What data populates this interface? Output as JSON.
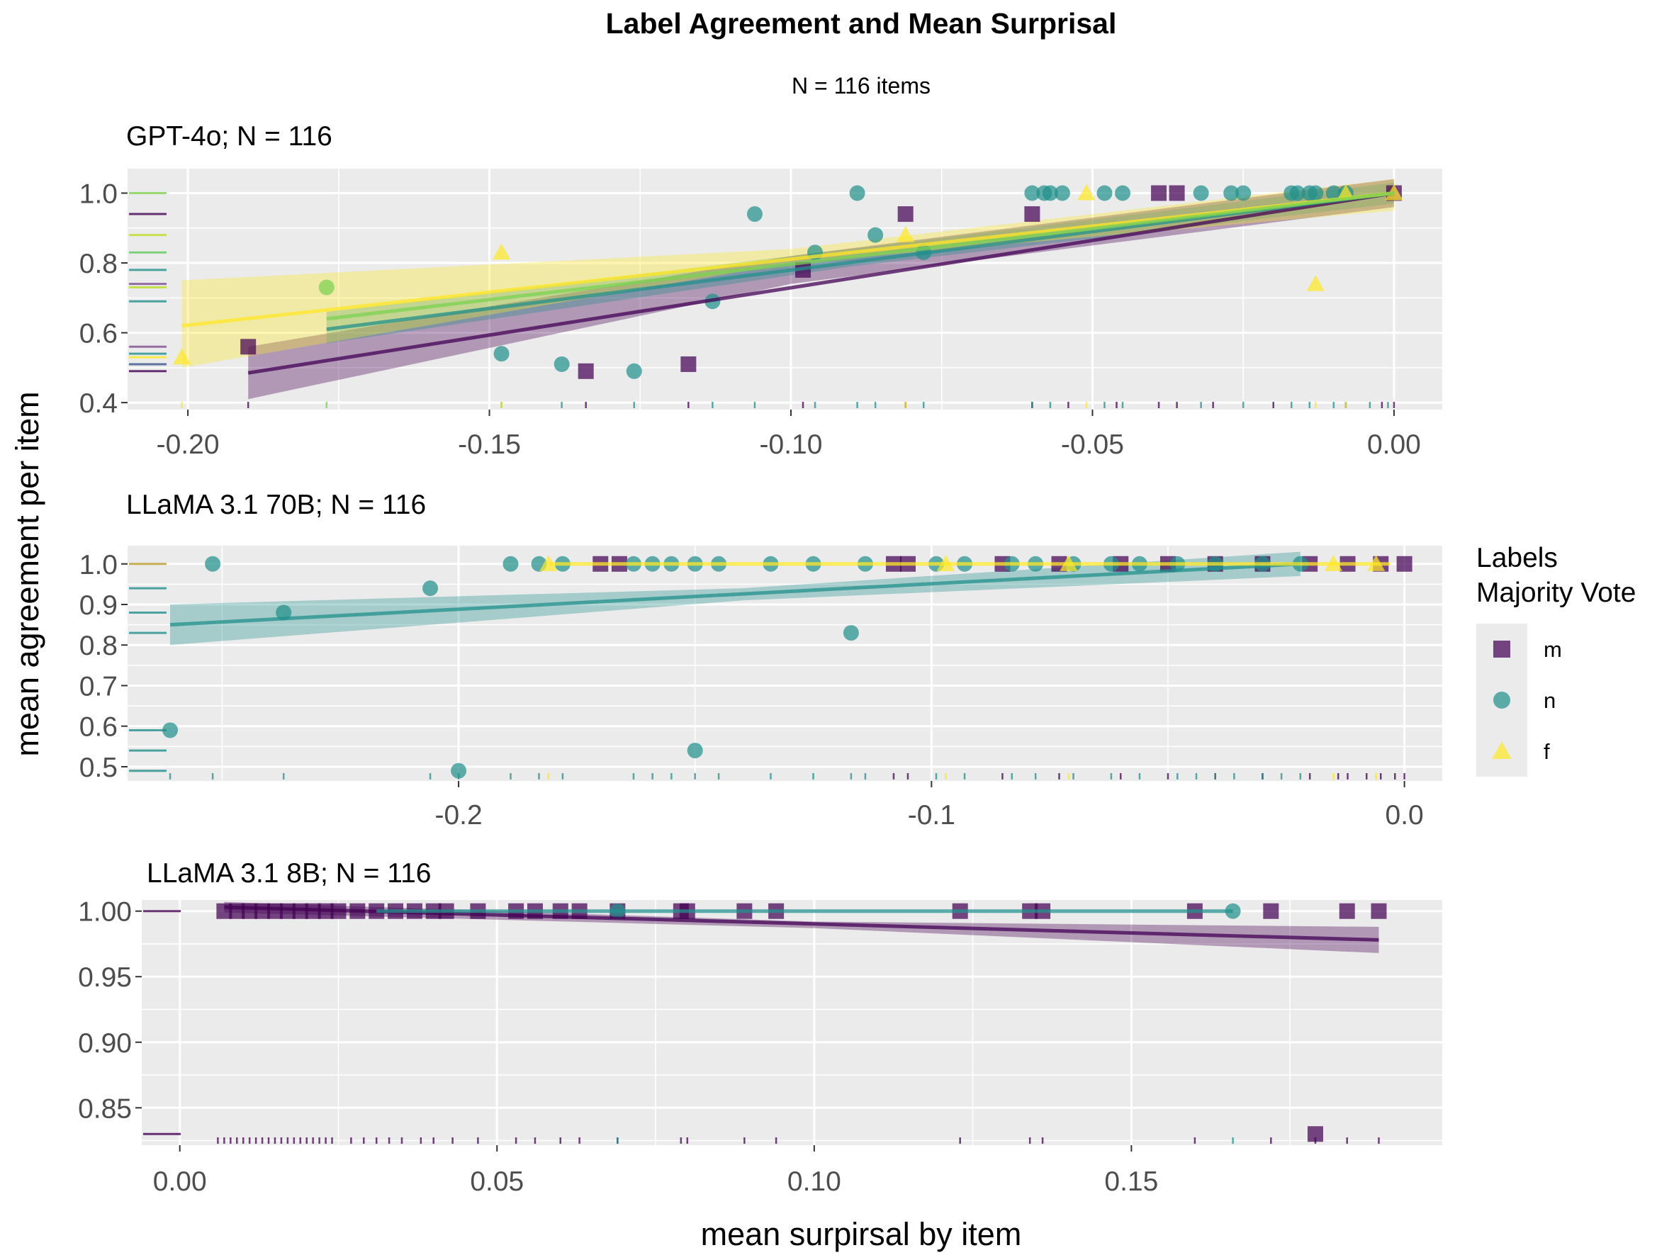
{
  "title": "Label Agreement and Mean Surprisal",
  "subtitle": "N = 116 items",
  "ylabel": "mean agreement per item",
  "xlabel": "mean surpirsal by item",
  "colors": {
    "m": "#440154",
    "n": "#21908c",
    "f": "#fde725",
    "panel_bg": "#ebebeb",
    "grid": "#ffffff"
  },
  "legend": {
    "title_line1": "Labels",
    "title_line2": "Majority Vote",
    "placement": "right",
    "items": [
      {
        "key": "m",
        "label": "m",
        "shape": "square"
      },
      {
        "key": "n",
        "label": "n",
        "shape": "circle"
      },
      {
        "key": "f",
        "label": "f",
        "shape": "triangle"
      }
    ]
  },
  "chart_data": [
    {
      "type": "scatter",
      "title": "GPT-4o; N = 116",
      "xlim": [
        -0.21,
        0.008
      ],
      "ylim": [
        0.38,
        1.07
      ],
      "xticks": [
        -0.2,
        -0.15,
        -0.1,
        -0.05,
        0.0
      ],
      "xtick_labels": [
        "-0.20",
        "-0.15",
        "-0.10",
        "-0.05",
        "0.00"
      ],
      "yticks": [
        0.4,
        0.6,
        0.8,
        1.0
      ],
      "ytick_labels": [
        "0.4",
        "0.6",
        "0.8",
        "1.0"
      ],
      "series": [
        {
          "key": "m",
          "points": [
            [
              -0.19,
              0.56
            ],
            [
              -0.134,
              0.49
            ],
            [
              -0.117,
              0.51
            ],
            [
              -0.098,
              0.78
            ],
            [
              -0.081,
              0.94
            ],
            [
              -0.06,
              0.94
            ],
            [
              -0.039,
              1.0
            ],
            [
              -0.036,
              1.0
            ],
            [
              0.0,
              1.0
            ]
          ],
          "fit": [
            [
              -0.19,
              0.485
            ],
            [
              0.0,
              1.0
            ]
          ],
          "band": [
            [
              -0.19,
              0.41,
              0.56
            ],
            [
              -0.1,
              0.74,
              0.82
            ],
            [
              0.0,
              0.96,
              1.04
            ]
          ],
          "rug_x": [
            -0.19,
            -0.134,
            -0.117,
            -0.098,
            -0.081,
            -0.06,
            -0.054,
            -0.046,
            -0.039,
            -0.036,
            -0.03,
            -0.02,
            -0.008,
            -0.002,
            0.0
          ]
        },
        {
          "key": "n",
          "points": [
            [
              -0.148,
              0.54
            ],
            [
              -0.138,
              0.51
            ],
            [
              -0.126,
              0.49
            ],
            [
              -0.113,
              0.69
            ],
            [
              -0.106,
              0.94
            ],
            [
              -0.096,
              0.83
            ],
            [
              -0.089,
              1.0
            ],
            [
              -0.086,
              0.88
            ],
            [
              -0.078,
              0.83
            ],
            [
              -0.06,
              1.0
            ],
            [
              -0.058,
              1.0
            ],
            [
              -0.057,
              1.0
            ],
            [
              -0.055,
              1.0
            ],
            [
              -0.048,
              1.0
            ],
            [
              -0.045,
              1.0
            ],
            [
              -0.032,
              1.0
            ],
            [
              -0.027,
              1.0
            ],
            [
              -0.025,
              1.0
            ],
            [
              -0.017,
              1.0
            ],
            [
              -0.016,
              1.0
            ],
            [
              -0.014,
              1.0
            ],
            [
              -0.013,
              1.0
            ],
            [
              -0.01,
              1.0
            ],
            [
              -0.008,
              1.0
            ]
          ],
          "fit": [
            [
              -0.177,
              0.61
            ],
            [
              0.0,
              1.0
            ]
          ],
          "band": [
            [
              -0.177,
              0.57,
              0.66
            ],
            [
              -0.09,
              0.79,
              0.84
            ],
            [
              0.0,
              0.97,
              1.03
            ]
          ],
          "rug_x": [
            -0.148,
            -0.138,
            -0.126,
            -0.113,
            -0.106,
            -0.096,
            -0.089,
            -0.086,
            -0.078,
            -0.06,
            -0.057,
            -0.048,
            -0.045,
            -0.032,
            -0.025,
            -0.017,
            -0.014,
            -0.01,
            -0.008,
            -0.004,
            -0.001
          ]
        },
        {
          "key": "f",
          "points": [
            [
              -0.201,
              0.53
            ],
            [
              -0.148,
              0.83
            ],
            [
              -0.081,
              0.88
            ],
            [
              -0.051,
              1.0
            ],
            [
              -0.013,
              0.74
            ],
            [
              -0.008,
              1.0
            ],
            [
              0.0,
              1.0
            ]
          ],
          "fit": [
            [
              -0.201,
              0.62
            ],
            [
              0.0,
              1.0
            ]
          ],
          "band": [
            [
              -0.201,
              0.5,
              0.75
            ],
            [
              -0.1,
              0.8,
              0.84
            ],
            [
              0.0,
              0.95,
              1.04
            ]
          ],
          "rug_x": [
            -0.201,
            -0.148,
            -0.081,
            -0.051,
            -0.013,
            -0.008
          ]
        },
        {
          "key": "green",
          "color": "#7ad151",
          "points": [
            [
              -0.177,
              0.73
            ]
          ],
          "fit": [
            [
              -0.177,
              0.64
            ],
            [
              0.0,
              1.0
            ]
          ],
          "band": [],
          "rug_x": [
            -0.177
          ]
        }
      ],
      "yrug": [
        {
          "y": 1.0,
          "color": "#7ad151"
        },
        {
          "y": 0.94,
          "color": "#440154"
        },
        {
          "y": 0.88,
          "color": "#bddf26"
        },
        {
          "y": 0.83,
          "color": "#5ec962"
        },
        {
          "y": 0.78,
          "color": "#21908c"
        },
        {
          "y": 0.74,
          "color": "#7e4e90"
        },
        {
          "y": 0.73,
          "color": "#bddf26"
        },
        {
          "y": 0.69,
          "color": "#21908c"
        },
        {
          "y": 0.56,
          "color": "#7e4e90"
        },
        {
          "y": 0.54,
          "color": "#21908c"
        },
        {
          "y": 0.53,
          "color": "#fde725"
        },
        {
          "y": 0.51,
          "color": "#3b528b"
        },
        {
          "y": 0.49,
          "color": "#440154"
        }
      ]
    },
    {
      "type": "scatter",
      "title": "LLaMA 3.1 70B; N = 116",
      "xlim": [
        -0.27,
        0.008
      ],
      "ylim": [
        0.465,
        1.045
      ],
      "xticks": [
        -0.2,
        -0.1,
        0.0
      ],
      "xtick_labels": [
        "-0.2",
        "-0.1",
        "0.0"
      ],
      "yticks": [
        0.5,
        0.6,
        0.7,
        0.8,
        0.9,
        1.0
      ],
      "ytick_labels": [
        "0.5",
        "0.6",
        "0.7",
        "0.8",
        "0.9",
        "1.0"
      ],
      "series": [
        {
          "key": "m",
          "points": [
            [
              -0.17,
              1.0
            ],
            [
              -0.166,
              1.0
            ],
            [
              -0.108,
              1.0
            ],
            [
              -0.105,
              1.0
            ],
            [
              -0.085,
              1.0
            ],
            [
              -0.073,
              1.0
            ],
            [
              -0.06,
              1.0
            ],
            [
              -0.05,
              1.0
            ],
            [
              -0.04,
              1.0
            ],
            [
              -0.03,
              1.0
            ],
            [
              -0.02,
              1.0
            ],
            [
              -0.012,
              1.0
            ],
            [
              -0.005,
              1.0
            ],
            [
              0.0,
              1.0
            ]
          ],
          "fit": [],
          "band": [],
          "rug_x": [
            -0.108,
            -0.105,
            -0.085,
            -0.073,
            -0.06,
            -0.05,
            -0.04,
            -0.03,
            -0.02,
            -0.014,
            -0.012,
            -0.008,
            -0.005,
            -0.002,
            0.0
          ]
        },
        {
          "key": "n",
          "points": [
            [
              -0.261,
              0.59
            ],
            [
              -0.252,
              1.0
            ],
            [
              -0.237,
              0.88
            ],
            [
              -0.206,
              0.94
            ],
            [
              -0.2,
              0.49
            ],
            [
              -0.189,
              1.0
            ],
            [
              -0.183,
              1.0
            ],
            [
              -0.178,
              1.0
            ],
            [
              -0.163,
              1.0
            ],
            [
              -0.159,
              1.0
            ],
            [
              -0.155,
              1.0
            ],
            [
              -0.15,
              0.54
            ],
            [
              -0.15,
              1.0
            ],
            [
              -0.145,
              1.0
            ],
            [
              -0.134,
              1.0
            ],
            [
              -0.125,
              1.0
            ],
            [
              -0.117,
              0.83
            ],
            [
              -0.114,
              1.0
            ],
            [
              -0.099,
              1.0
            ],
            [
              -0.093,
              1.0
            ],
            [
              -0.083,
              1.0
            ],
            [
              -0.078,
              1.0
            ],
            [
              -0.07,
              1.0
            ],
            [
              -0.062,
              1.0
            ],
            [
              -0.056,
              1.0
            ],
            [
              -0.048,
              1.0
            ],
            [
              -0.04,
              1.0
            ],
            [
              -0.03,
              1.0
            ],
            [
              -0.022,
              1.0
            ]
          ],
          "fit": [
            [
              -0.261,
              0.85
            ],
            [
              -0.022,
              1.0
            ]
          ],
          "band": [
            [
              -0.261,
              0.8,
              0.9
            ],
            [
              -0.14,
              0.91,
              0.94
            ],
            [
              -0.022,
              0.97,
              1.03
            ]
          ],
          "rug_x": [
            -0.261,
            -0.252,
            -0.237,
            -0.206,
            -0.2,
            -0.189,
            -0.183,
            -0.178,
            -0.163,
            -0.159,
            -0.155,
            -0.15,
            -0.145,
            -0.134,
            -0.125,
            -0.117,
            -0.114,
            -0.099,
            -0.093,
            -0.083,
            -0.078,
            -0.07,
            -0.062,
            -0.056,
            -0.048,
            -0.044,
            -0.04,
            -0.036,
            -0.03,
            -0.026,
            -0.022
          ]
        },
        {
          "key": "f",
          "points": [
            [
              -0.181,
              1.0
            ],
            [
              -0.097,
              1.0
            ],
            [
              -0.071,
              1.0
            ],
            [
              -0.015,
              1.0
            ],
            [
              -0.006,
              1.0
            ]
          ],
          "fit": [
            [
              -0.181,
              1.0
            ],
            [
              -0.003,
              1.0
            ]
          ],
          "band": [],
          "rug_x": [
            -0.181,
            -0.097,
            -0.071,
            -0.015,
            -0.006
          ]
        }
      ],
      "yrug": [
        {
          "y": 1.0,
          "color": "#b59a2c"
        },
        {
          "y": 0.94,
          "color": "#21908c"
        },
        {
          "y": 0.88,
          "color": "#21908c"
        },
        {
          "y": 0.83,
          "color": "#21908c"
        },
        {
          "y": 0.59,
          "color": "#21908c"
        },
        {
          "y": 0.54,
          "color": "#21908c"
        },
        {
          "y": 0.49,
          "color": "#21908c"
        }
      ]
    },
    {
      "type": "scatter",
      "title": "LLaMA 3.1 8B; N = 116",
      "xlim": [
        -0.006,
        0.199
      ],
      "ylim": [
        0.8215,
        1.0085
      ],
      "xticks": [
        0.0,
        0.05,
        0.1,
        0.15
      ],
      "xtick_labels": [
        "0.00",
        "0.05",
        "0.10",
        "0.15"
      ],
      "yticks": [
        0.85,
        0.9,
        0.95,
        1.0
      ],
      "ytick_labels": [
        "0.85",
        "0.90",
        "0.95",
        "1.00"
      ],
      "series": [
        {
          "key": "m",
          "points": [
            [
              0.007,
              1.0
            ],
            [
              0.009,
              1.0
            ],
            [
              0.011,
              1.0
            ],
            [
              0.013,
              1.0
            ],
            [
              0.015,
              1.0
            ],
            [
              0.017,
              1.0
            ],
            [
              0.019,
              1.0
            ],
            [
              0.021,
              1.0
            ],
            [
              0.023,
              1.0
            ],
            [
              0.025,
              1.0
            ],
            [
              0.028,
              1.0
            ],
            [
              0.031,
              1.0
            ],
            [
              0.034,
              1.0
            ],
            [
              0.037,
              1.0
            ],
            [
              0.04,
              1.0
            ],
            [
              0.042,
              1.0
            ],
            [
              0.047,
              1.0
            ],
            [
              0.053,
              1.0
            ],
            [
              0.056,
              1.0
            ],
            [
              0.06,
              1.0
            ],
            [
              0.063,
              1.0
            ],
            [
              0.069,
              1.0
            ],
            [
              0.079,
              1.0
            ],
            [
              0.08,
              1.0
            ],
            [
              0.089,
              1.0
            ],
            [
              0.094,
              1.0
            ],
            [
              0.123,
              1.0
            ],
            [
              0.134,
              1.0
            ],
            [
              0.136,
              1.0
            ],
            [
              0.16,
              1.0
            ],
            [
              0.172,
              1.0
            ],
            [
              0.179,
              0.83
            ],
            [
              0.184,
              1.0
            ],
            [
              0.189,
              1.0
            ]
          ],
          "fit": [
            [
              0.007,
              1.003
            ],
            [
              0.189,
              0.978
            ]
          ],
          "band": [
            [
              0.007,
              0.999,
              1.007
            ],
            [
              0.1,
              0.987,
              0.992
            ],
            [
              0.189,
              0.968,
              0.988
            ]
          ],
          "rug_x": [
            0.006,
            0.007,
            0.008,
            0.009,
            0.01,
            0.011,
            0.012,
            0.013,
            0.014,
            0.015,
            0.016,
            0.017,
            0.018,
            0.019,
            0.02,
            0.021,
            0.022,
            0.023,
            0.024,
            0.027,
            0.029,
            0.031,
            0.033,
            0.035,
            0.038,
            0.04,
            0.043,
            0.047,
            0.053,
            0.056,
            0.06,
            0.063,
            0.069,
            0.079,
            0.08,
            0.089,
            0.094,
            0.123,
            0.134,
            0.136,
            0.16,
            0.172,
            0.179,
            0.184,
            0.189
          ]
        },
        {
          "key": "n",
          "points": [
            [
              0.069,
              1.0
            ],
            [
              0.166,
              1.0
            ]
          ],
          "fit": [
            [
              0.031,
              1.0
            ],
            [
              0.166,
              1.0
            ]
          ],
          "band": [],
          "rug_x": [
            0.069,
            0.166
          ]
        }
      ],
      "yrug": [
        {
          "y": 1.0,
          "color": "#440154"
        },
        {
          "y": 0.83,
          "color": "#440154"
        }
      ]
    }
  ]
}
